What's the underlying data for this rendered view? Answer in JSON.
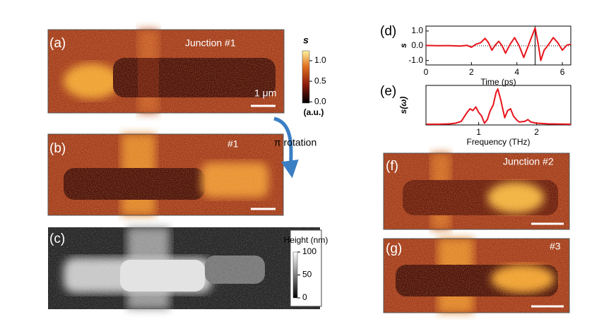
{
  "panel_labels": [
    "(a)",
    "(b)",
    "(c)",
    "(f)",
    "(g)"
  ],
  "image_labels": {
    "a": "Junction #1",
    "b": "#1",
    "f": "Junction #2",
    "g": "#3"
  },
  "scale_bar": "1 μm",
  "rotation": "π rotation",
  "colorbar_s": {
    "label": "s",
    "unit": "(a.u.)",
    "lim": [
      -0.03,
      1.24
    ],
    "ticks": [
      {
        "value": 0,
        "label": "0.0"
      },
      {
        "value": 0.5,
        "label": "0.5"
      },
      {
        "value": 1,
        "label": "1.0"
      }
    ]
  },
  "colorbar_height": {
    "label": "Height (nm)",
    "lim": [
      0,
      100
    ],
    "ticks": [
      0,
      50,
      100
    ]
  },
  "chart_data": [
    {
      "type": "line",
      "label": "(d)",
      "xlabel": "Time (ps)",
      "ylabel": "s",
      "x": [
        0,
        0.5,
        1,
        1.5,
        1.8,
        2.0,
        2.2,
        2.4,
        2.6,
        2.75,
        2.9,
        3.05,
        3.2,
        3.35,
        3.5,
        3.7,
        3.9,
        4.1,
        4.3,
        4.45,
        4.6,
        4.8,
        4.95,
        5.05,
        5.2,
        5.4,
        5.6,
        5.8,
        6.0,
        6.2,
        6.37
      ],
      "series": [
        {
          "color": "#e8141c",
          "values": [
            0.02,
            0,
            0.01,
            -0.02,
            0.03,
            -0.1,
            0.1,
            0.2,
            0.5,
            0.2,
            -0.3,
            0.05,
            0.3,
            0.0,
            -0.5,
            0.1,
            0.55,
            0.0,
            -0.8,
            -0.2,
            0.4,
            1.2,
            0.0,
            -1.0,
            -0.3,
            0.1,
            0.55,
            0.2,
            -0.3,
            0.05,
            0.1
          ]
        }
      ],
      "xlim": [
        0,
        6.37
      ],
      "xticks": [
        0,
        2,
        4,
        6
      ],
      "ylim": [
        -1.3,
        1.33
      ],
      "yticks": [
        {
          "value": -1,
          "label": "-1.0"
        },
        {
          "value": 0,
          "label": "0.0"
        },
        {
          "value": 1,
          "label": "1.0"
        }
      ],
      "zero_line": "dotted",
      "marker_x": 4.8
    },
    {
      "type": "line",
      "label": "(e)",
      "xlabel": "Frequency (THz)",
      "ylabel": "s(ω)",
      "x": [
        0.1,
        0.3,
        0.5,
        0.6,
        0.7,
        0.8,
        0.85,
        0.9,
        0.95,
        1.0,
        1.05,
        1.1,
        1.15,
        1.2,
        1.25,
        1.3,
        1.33,
        1.38,
        1.45,
        1.5,
        1.55,
        1.6,
        1.65,
        1.7,
        1.8,
        1.85,
        1.9,
        2.0,
        2.2,
        2.59
      ],
      "series": [
        {
          "color": "#e8141c",
          "values": [
            0.02,
            0.02,
            0.03,
            0.05,
            0.1,
            0.35,
            0.45,
            0.4,
            0.5,
            0.35,
            0.25,
            0.05,
            0.15,
            0.4,
            0.55,
            0.9,
            1.0,
            0.7,
            0.2,
            0.4,
            0.45,
            0.25,
            0.15,
            0.08,
            0.1,
            0.15,
            0.08,
            0.05,
            0.03,
            0.02
          ]
        }
      ],
      "xlim": [
        0.09,
        2.59
      ],
      "xticks": [
        1,
        2
      ],
      "ylim": [
        0,
        1.1
      ]
    }
  ]
}
